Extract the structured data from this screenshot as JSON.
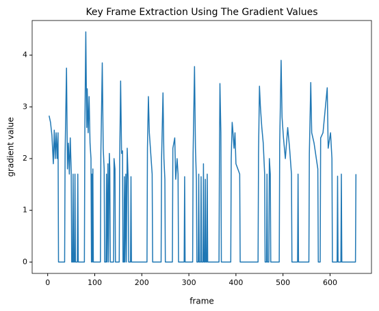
{
  "chart_data": {
    "type": "line",
    "title": "Key Frame Extraction Using The Gradient Values",
    "x_label": "frame",
    "y_label": "gradient value",
    "xlim": [
      -33,
      688
    ],
    "ylim": [
      -0.22,
      4.67
    ],
    "xticks": [
      0,
      100,
      200,
      300,
      400,
      500,
      600
    ],
    "yticks": [
      0,
      1,
      2,
      3,
      4
    ],
    "grid": false,
    "series": [
      {
        "name": "gradient value",
        "color": "#1f77b4",
        "x": [
          3,
          6,
          9,
          12,
          14,
          16,
          18,
          20,
          22,
          23,
          36,
          37,
          40,
          42,
          44,
          46,
          48,
          50,
          51,
          53,
          54,
          55,
          57,
          58,
          59,
          63,
          64,
          65,
          78,
          79,
          81,
          83,
          84,
          86,
          88,
          90,
          92,
          93,
          94,
          95,
          96,
          97,
          112,
          113,
          116,
          118,
          120,
          121,
          124,
          125,
          126,
          128,
          129,
          131,
          132,
          133,
          140,
          141,
          143,
          144,
          152,
          153,
          155,
          157,
          159,
          160,
          162,
          163,
          164,
          166,
          167,
          169,
          171,
          172,
          176,
          177,
          178,
          211,
          212,
          214,
          216,
          219,
          222,
          223,
          241,
          242,
          245,
          247,
          249,
          250,
          265,
          266,
          270,
          272,
          275,
          277,
          278,
          290,
          291,
          292,
          308,
          309,
          312,
          314,
          316,
          317,
          320,
          321,
          322,
          325,
          326,
          327,
          330,
          331,
          332,
          334,
          335,
          336,
          338,
          339,
          340,
          364,
          365,
          366,
          368,
          369,
          389,
          390,
          392,
          393,
          396,
          398,
          400,
          404,
          408,
          409,
          447,
          448,
          450,
          452,
          455,
          458,
          461,
          462,
          465,
          466,
          467,
          470,
          471,
          473,
          474,
          492,
          493,
          496,
          498,
          501,
          505,
          510,
          514,
          518,
          519,
          531,
          532,
          533,
          555,
          556,
          559,
          561,
          566,
          574,
          575,
          579,
          580,
          585,
          594,
          596,
          601,
          604,
          605,
          615,
          616,
          617,
          623,
          624,
          625,
          654,
          655
        ],
        "values": [
          2.83,
          2.7,
          2.45,
          1.9,
          2.55,
          2.0,
          2.5,
          2.0,
          2.5,
          0,
          0,
          2.1,
          3.75,
          1.8,
          2.3,
          1.7,
          2.4,
          1.75,
          0,
          0,
          1.7,
          0,
          0,
          1.7,
          0,
          0,
          1.7,
          0,
          0,
          2.6,
          4.45,
          2.6,
          3.35,
          2.5,
          3.2,
          2.3,
          2.0,
          0,
          1.7,
          0,
          1.8,
          0,
          0,
          2.1,
          3.85,
          2.2,
          1.8,
          0,
          0,
          1.7,
          0,
          1.9,
          0,
          2.1,
          1.8,
          0,
          0,
          2.0,
          1.8,
          0,
          0,
          2.0,
          3.5,
          2.1,
          2.15,
          0,
          0,
          1.65,
          0,
          1.7,
          0,
          2.2,
          1.6,
          0,
          0,
          1.65,
          0,
          0,
          2.2,
          3.2,
          2.5,
          2.1,
          1.7,
          0,
          0,
          2.0,
          3.27,
          2.0,
          1.6,
          0,
          0,
          2.2,
          2.4,
          1.6,
          2.0,
          1.7,
          0,
          0,
          1.65,
          0,
          0,
          2.1,
          3.78,
          2.2,
          1.6,
          0,
          0,
          1.7,
          0,
          0,
          1.65,
          0,
          0,
          1.9,
          0,
          0,
          1.6,
          0,
          0,
          1.7,
          0,
          0,
          2.1,
          3.45,
          2.5,
          0,
          0,
          2.0,
          2.7,
          2.6,
          2.2,
          2.5,
          1.9,
          1.8,
          1.7,
          0,
          0,
          2.1,
          3.4,
          3.0,
          2.6,
          2.3,
          1.7,
          0,
          0,
          1.7,
          0,
          0,
          2.0,
          1.7,
          0,
          0,
          2.3,
          3.9,
          2.8,
          2.4,
          2.0,
          2.6,
          2.2,
          1.7,
          0,
          0,
          1.7,
          0,
          0,
          2.1,
          3.47,
          2.5,
          2.3,
          1.8,
          0,
          0,
          2.4,
          2.5,
          3.37,
          2.2,
          2.5,
          2.0,
          0,
          0,
          1.66,
          0,
          0,
          1.7,
          0,
          0,
          1.7
        ]
      }
    ]
  }
}
